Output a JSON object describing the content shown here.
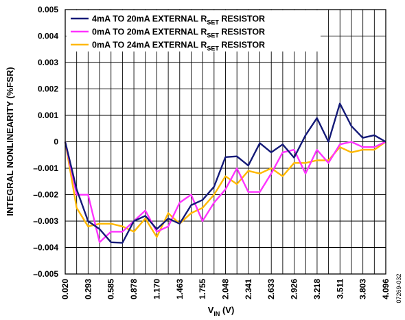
{
  "chart_data": {
    "type": "line",
    "xlabel_main": "V",
    "xlabel_sub": "IN",
    "xlabel_unit": " (V)",
    "ylabel": "INTEGRAL NONLINEARITY (%FSR)",
    "figure_id": "07269-032",
    "xlim": [
      0.02,
      4.096
    ],
    "ylim": [
      -0.005,
      0.005
    ],
    "x_tick_labels": [
      "0.020",
      "0.293",
      "0.585",
      "0.878",
      "1.170",
      "1.463",
      "1.755",
      "2.048",
      "2.341",
      "2.633",
      "2.926",
      "3.218",
      "3.511",
      "3.803",
      "4.096"
    ],
    "y_tick_labels": [
      "0.005",
      "0.004",
      "0.003",
      "0.002",
      "0.001",
      "0",
      "–0.001",
      "–0.002",
      "–0.003",
      "–0.004",
      "–0.005"
    ],
    "x_gridlines": 28,
    "grid": true,
    "legend_position": "top-left",
    "series": [
      {
        "name_main": "4mA TO 20mA EXTERNAL R",
        "name_sub": "SET",
        "name_tail": " RESISTOR",
        "color": "#141a78",
        "points": [
          [
            0.02,
            0.0
          ],
          [
            0.166,
            -0.0018
          ],
          [
            0.311,
            -0.003
          ],
          [
            0.457,
            -0.0033
          ],
          [
            0.602,
            -0.0038
          ],
          [
            0.748,
            -0.00382
          ],
          [
            0.893,
            -0.003
          ],
          [
            1.039,
            -0.0028
          ],
          [
            1.184,
            -0.0033
          ],
          [
            1.33,
            -0.0029
          ],
          [
            1.475,
            -0.0031
          ],
          [
            1.621,
            -0.0024
          ],
          [
            1.766,
            -0.0022
          ],
          [
            1.912,
            -0.0017
          ],
          [
            2.057,
            -0.00058
          ],
          [
            2.203,
            -0.00055
          ],
          [
            2.348,
            -0.0009
          ],
          [
            2.494,
            -5e-05
          ],
          [
            2.639,
            -0.0004
          ],
          [
            2.785,
            -0.0001
          ],
          [
            2.93,
            -0.0006
          ],
          [
            3.076,
            0.00025
          ],
          [
            3.221,
            0.0009
          ],
          [
            3.367,
            0.0
          ],
          [
            3.512,
            0.00145
          ],
          [
            3.658,
            0.0006
          ],
          [
            3.803,
            0.00015
          ],
          [
            3.949,
            0.00025
          ],
          [
            4.096,
            0.0
          ]
        ]
      },
      {
        "name_main": "0mA TO 20mA EXTERNAL R",
        "name_sub": "SET",
        "name_tail": " RESISTOR",
        "color": "#ff33ff",
        "points": [
          [
            0.02,
            0.0
          ],
          [
            0.166,
            -0.002
          ],
          [
            0.311,
            -0.002
          ],
          [
            0.457,
            -0.0038
          ],
          [
            0.602,
            -0.0034
          ],
          [
            0.748,
            -0.0034
          ],
          [
            0.893,
            -0.003
          ],
          [
            1.039,
            -0.0026
          ],
          [
            1.184,
            -0.0034
          ],
          [
            1.33,
            -0.0032
          ],
          [
            1.475,
            -0.0023
          ],
          [
            1.621,
            -0.002
          ],
          [
            1.766,
            -0.003
          ],
          [
            1.912,
            -0.0023
          ],
          [
            2.057,
            -0.0018
          ],
          [
            2.203,
            -0.001
          ],
          [
            2.348,
            -0.0019
          ],
          [
            2.494,
            -0.0019
          ],
          [
            2.639,
            -0.0012
          ],
          [
            2.785,
            -0.0004
          ],
          [
            2.93,
            -0.0003
          ],
          [
            3.076,
            -0.0012
          ],
          [
            3.221,
            -0.0003
          ],
          [
            3.367,
            -0.0008
          ],
          [
            3.512,
            -0.0001
          ],
          [
            3.658,
            0.0
          ],
          [
            3.803,
            -0.0002
          ],
          [
            3.949,
            -0.0002
          ],
          [
            4.096,
            0.0
          ]
        ]
      },
      {
        "name_main": "0mA TO 24mA EXTERNAL R",
        "name_sub": "SET",
        "name_tail": " RESISTOR",
        "color": "#ffb800",
        "points": [
          [
            0.02,
            0.0
          ],
          [
            0.166,
            -0.0025
          ],
          [
            0.311,
            -0.0032
          ],
          [
            0.457,
            -0.0031
          ],
          [
            0.602,
            -0.0031
          ],
          [
            0.748,
            -0.0032
          ],
          [
            0.893,
            -0.0034
          ],
          [
            1.039,
            -0.0029
          ],
          [
            1.184,
            -0.0036
          ],
          [
            1.33,
            -0.0027
          ],
          [
            1.475,
            -0.0031
          ],
          [
            1.621,
            -0.0027
          ],
          [
            1.766,
            -0.0025
          ],
          [
            1.912,
            -0.002
          ],
          [
            2.057,
            -0.0013
          ],
          [
            2.203,
            -0.0016
          ],
          [
            2.348,
            -0.0011
          ],
          [
            2.494,
            -0.0012
          ],
          [
            2.639,
            -0.001
          ],
          [
            2.785,
            -0.0013
          ],
          [
            2.93,
            -0.0008
          ],
          [
            3.076,
            -0.0008
          ],
          [
            3.221,
            -0.0007
          ],
          [
            3.367,
            -0.0007
          ],
          [
            3.512,
            -0.0002
          ],
          [
            3.658,
            -0.0004
          ],
          [
            3.803,
            -0.0003
          ],
          [
            3.949,
            -0.0003
          ],
          [
            4.096,
            0.0
          ]
        ]
      }
    ]
  }
}
